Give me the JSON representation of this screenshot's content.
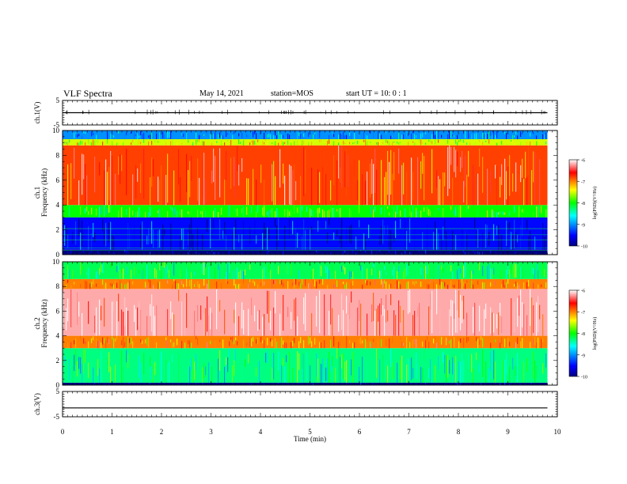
{
  "header": {
    "title": "VLF Spectra",
    "date": "May 14, 2021",
    "station": "station=MOS",
    "start_ut": "start  UT  =   10: 0  : 1"
  },
  "chart_data": [
    {
      "type": "line",
      "panel": "ch1-voltage",
      "ylabel": "ch.1(V)",
      "ylim": [
        -5,
        5
      ],
      "yticks": [
        "5",
        "-5"
      ],
      "xlim": [
        0,
        10
      ],
      "x": [
        0,
        9.8
      ],
      "y": [
        0,
        0
      ]
    },
    {
      "type": "heatmap",
      "panel": "ch1-spectrogram",
      "ylabel": "ch.1\nFrequency (kHz)",
      "ylim": [
        0,
        10
      ],
      "yticks": [
        "0",
        "2",
        "4",
        "6",
        "8",
        "10"
      ],
      "xlim": [
        0,
        9.8
      ],
      "bands_khz": [
        {
          "from": 0,
          "to": 0.4,
          "level": -10
        },
        {
          "from": 0.4,
          "to": 3,
          "level": -9.5
        },
        {
          "from": 3,
          "to": 4,
          "level": -8
        },
        {
          "from": 4,
          "to": 8.8,
          "level": -6.8
        },
        {
          "from": 8.8,
          "to": 9.3,
          "level": -7.5
        },
        {
          "from": 9.3,
          "to": 10,
          "level": -9
        }
      ],
      "colorbar": {
        "label": "log(PSD)(V²/Hz)",
        "range": [
          -10,
          -6
        ],
        "ticks": [
          "-6",
          "-7",
          "-8",
          "-9",
          "-10"
        ]
      }
    },
    {
      "type": "heatmap",
      "panel": "ch2-spectrogram",
      "ylabel": "ch.2\nFrequency (kHz)",
      "ylim": [
        0,
        10
      ],
      "yticks": [
        "0",
        "2",
        "4",
        "6",
        "8",
        "10"
      ],
      "xlim": [
        0,
        9.8
      ],
      "bands_khz": [
        {
          "from": 0,
          "to": 0.2,
          "level": -10
        },
        {
          "from": 0.2,
          "to": 3,
          "level": -8.3
        },
        {
          "from": 3,
          "to": 4,
          "level": -7
        },
        {
          "from": 4,
          "to": 7.8,
          "level": -6.2
        },
        {
          "from": 7.8,
          "to": 8.6,
          "level": -7
        },
        {
          "from": 8.6,
          "to": 10,
          "level": -8.2
        }
      ],
      "colorbar": {
        "label": "log(PSD)(V²/Hz)",
        "range": [
          -10,
          -6
        ],
        "ticks": [
          "-6",
          "-7",
          "-8",
          "-9",
          "-10"
        ]
      }
    },
    {
      "type": "line",
      "panel": "ch3-voltage",
      "ylabel": "ch.3(V)",
      "ylim": [
        -5,
        5
      ],
      "yticks": [
        "5",
        "-5"
      ],
      "xlim": [
        0,
        10
      ],
      "x": [
        0,
        9.8
      ],
      "y": [
        -1.5,
        -1.5
      ]
    }
  ],
  "xaxis": {
    "label": "Time  (min)",
    "ticks": [
      "0",
      "1",
      "2",
      "3",
      "4",
      "5",
      "6",
      "7",
      "8",
      "9",
      "10"
    ],
    "range": [
      0,
      10
    ]
  },
  "colors": {
    "deep_blue": "#00007f",
    "blue": "#0000ff",
    "cyan": "#00ffff",
    "green": "#00ff00",
    "yellow": "#ffff00",
    "red": "#ff0000",
    "white": "#ffffff"
  }
}
